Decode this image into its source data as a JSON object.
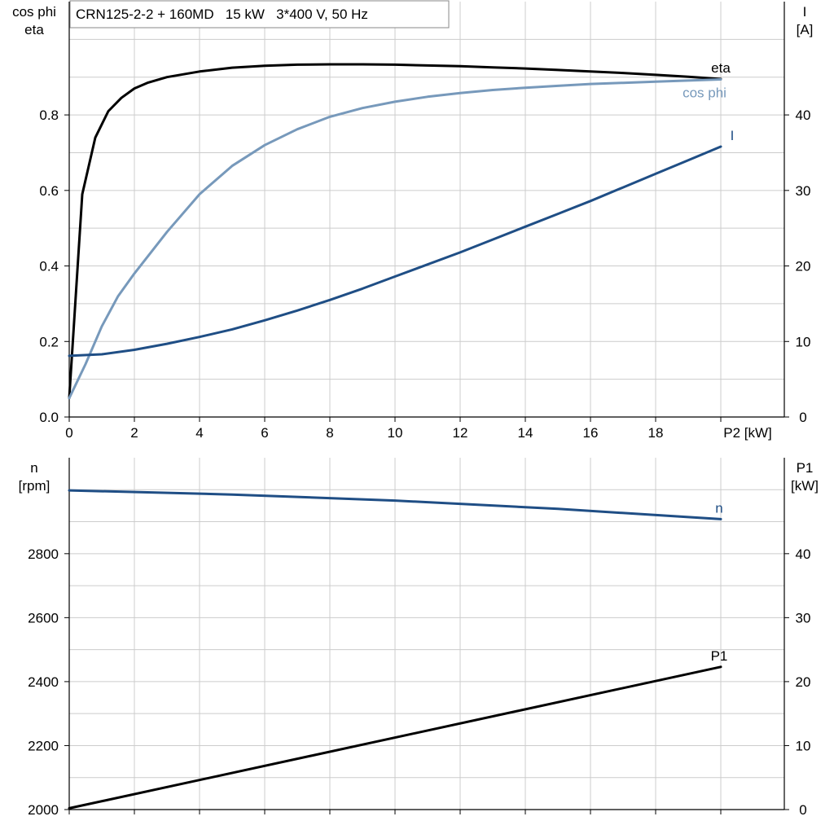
{
  "chart_data": [
    {
      "type": "line",
      "title": "CRN125-2-2 + 160MD   15 kW   3*400 V, 50 Hz",
      "xlabel": "P2 [kW]",
      "xlim": [
        0,
        22
      ],
      "x_ticks": [
        "0",
        "2",
        "4",
        "6",
        "8",
        "10",
        "12",
        "14",
        "16",
        "18"
      ],
      "y_left": {
        "label_lines": [
          "cos phi",
          "eta"
        ],
        "lim": [
          0,
          1.1
        ],
        "ticks": [
          "0.0",
          "0.2",
          "0.4",
          "0.6",
          "0.8"
        ],
        "tick_values": [
          0,
          0.2,
          0.4,
          0.6,
          0.8
        ]
      },
      "y_right": {
        "label_lines": [
          "I",
          "[A]"
        ],
        "lim": [
          0,
          55
        ],
        "ticks": [
          "0",
          "10",
          "20",
          "30",
          "40"
        ],
        "tick_values": [
          0,
          10,
          20,
          30,
          40
        ]
      },
      "grid": true,
      "series": [
        {
          "name": "eta",
          "axis": "left",
          "color": "#000000",
          "x": [
            0,
            0.4,
            0.8,
            1.2,
            1.6,
            2,
            2.4,
            3,
            4,
            5,
            6,
            7,
            8,
            9,
            10,
            11,
            12,
            13,
            14,
            15,
            16,
            17,
            18,
            19,
            20
          ],
          "y": [
            0.05,
            0.59,
            0.74,
            0.81,
            0.845,
            0.87,
            0.885,
            0.9,
            0.915,
            0.925,
            0.93,
            0.933,
            0.934,
            0.934,
            0.933,
            0.931,
            0.929,
            0.926,
            0.923,
            0.919,
            0.915,
            0.911,
            0.906,
            0.901,
            0.895
          ]
        },
        {
          "name": "cos phi",
          "axis": "left",
          "color": "#7799bb",
          "x": [
            0,
            0.5,
            1,
            1.5,
            2,
            3,
            4,
            5,
            6,
            7,
            8,
            9,
            10,
            11,
            12,
            13,
            14,
            15,
            16,
            17,
            18,
            19,
            20
          ],
          "y": [
            0.05,
            0.14,
            0.24,
            0.32,
            0.38,
            0.49,
            0.59,
            0.665,
            0.72,
            0.762,
            0.795,
            0.818,
            0.835,
            0.848,
            0.858,
            0.866,
            0.872,
            0.877,
            0.882,
            0.885,
            0.888,
            0.891,
            0.894
          ]
        },
        {
          "name": "I",
          "axis": "right",
          "color": "#1f4e85",
          "x": [
            0,
            1,
            2,
            3,
            4,
            5,
            6,
            7,
            8,
            9,
            10,
            11,
            12,
            13,
            14,
            15,
            16,
            17,
            18,
            19,
            20
          ],
          "y": [
            8.1,
            8.3,
            8.9,
            9.7,
            10.6,
            11.6,
            12.8,
            14.1,
            15.5,
            17.0,
            18.6,
            20.2,
            21.8,
            23.5,
            25.2,
            26.9,
            28.6,
            30.4,
            32.2,
            34.0,
            35.8
          ]
        }
      ]
    },
    {
      "type": "line",
      "xlim": [
        0,
        22
      ],
      "y_left": {
        "label_lines": [
          "n",
          "[rpm]"
        ],
        "lim": [
          2000,
          3100
        ],
        "ticks": [
          "2000",
          "2200",
          "2400",
          "2600",
          "2800"
        ],
        "tick_values": [
          2000,
          2200,
          2400,
          2600,
          2800
        ]
      },
      "y_right": {
        "label_lines": [
          "P1",
          "[kW]"
        ],
        "lim": [
          0,
          55
        ],
        "ticks": [
          "0",
          "10",
          "20",
          "30",
          "40"
        ],
        "tick_values": [
          0,
          10,
          20,
          30,
          40
        ]
      },
      "grid": true,
      "series": [
        {
          "name": "n",
          "axis": "left",
          "color": "#1f4e85",
          "x": [
            0,
            5,
            10,
            15,
            20
          ],
          "y": [
            2998,
            2985,
            2966,
            2940,
            2908
          ]
        },
        {
          "name": "P1",
          "axis": "right",
          "color": "#000000",
          "x": [
            0,
            20
          ],
          "y": [
            0.2,
            22.3
          ]
        }
      ]
    }
  ]
}
